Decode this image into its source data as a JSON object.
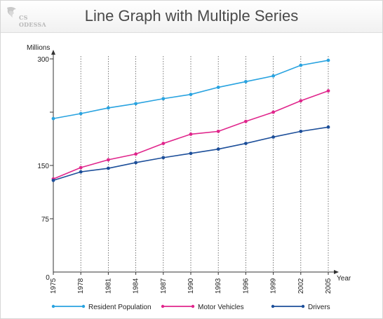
{
  "header": {
    "title": "Line Graph with Multiple Series",
    "logo_text": "CS ODESSA"
  },
  "chart_data": {
    "type": "line",
    "title": "Line Graph with Multiple Series",
    "ylabel": "Millions",
    "xlabel": "Year",
    "origin_label": "0",
    "x": [
      "1975",
      "1978",
      "1981",
      "1984",
      "1987",
      "1990",
      "1993",
      "1996",
      "1999",
      "2002",
      "2005"
    ],
    "yticks": [
      75,
      150,
      300
    ],
    "ylim": [
      0,
      300
    ],
    "grid": "vertical dotted",
    "legend": "bottom",
    "series": [
      {
        "name": "Resident Population",
        "color": "#29a3e0",
        "values": [
          216,
          223,
          231,
          237,
          244,
          250,
          260,
          268,
          276,
          291,
          298
        ]
      },
      {
        "name": "Motor Vehicles",
        "color": "#e0268c",
        "values": [
          131,
          147,
          158,
          166,
          181,
          194,
          198,
          212,
          225,
          241,
          255
        ]
      },
      {
        "name": "Drivers",
        "color": "#1d4f9a",
        "values": [
          129,
          141,
          146,
          154,
          161,
          167,
          173,
          181,
          190,
          198,
          204
        ]
      }
    ]
  }
}
